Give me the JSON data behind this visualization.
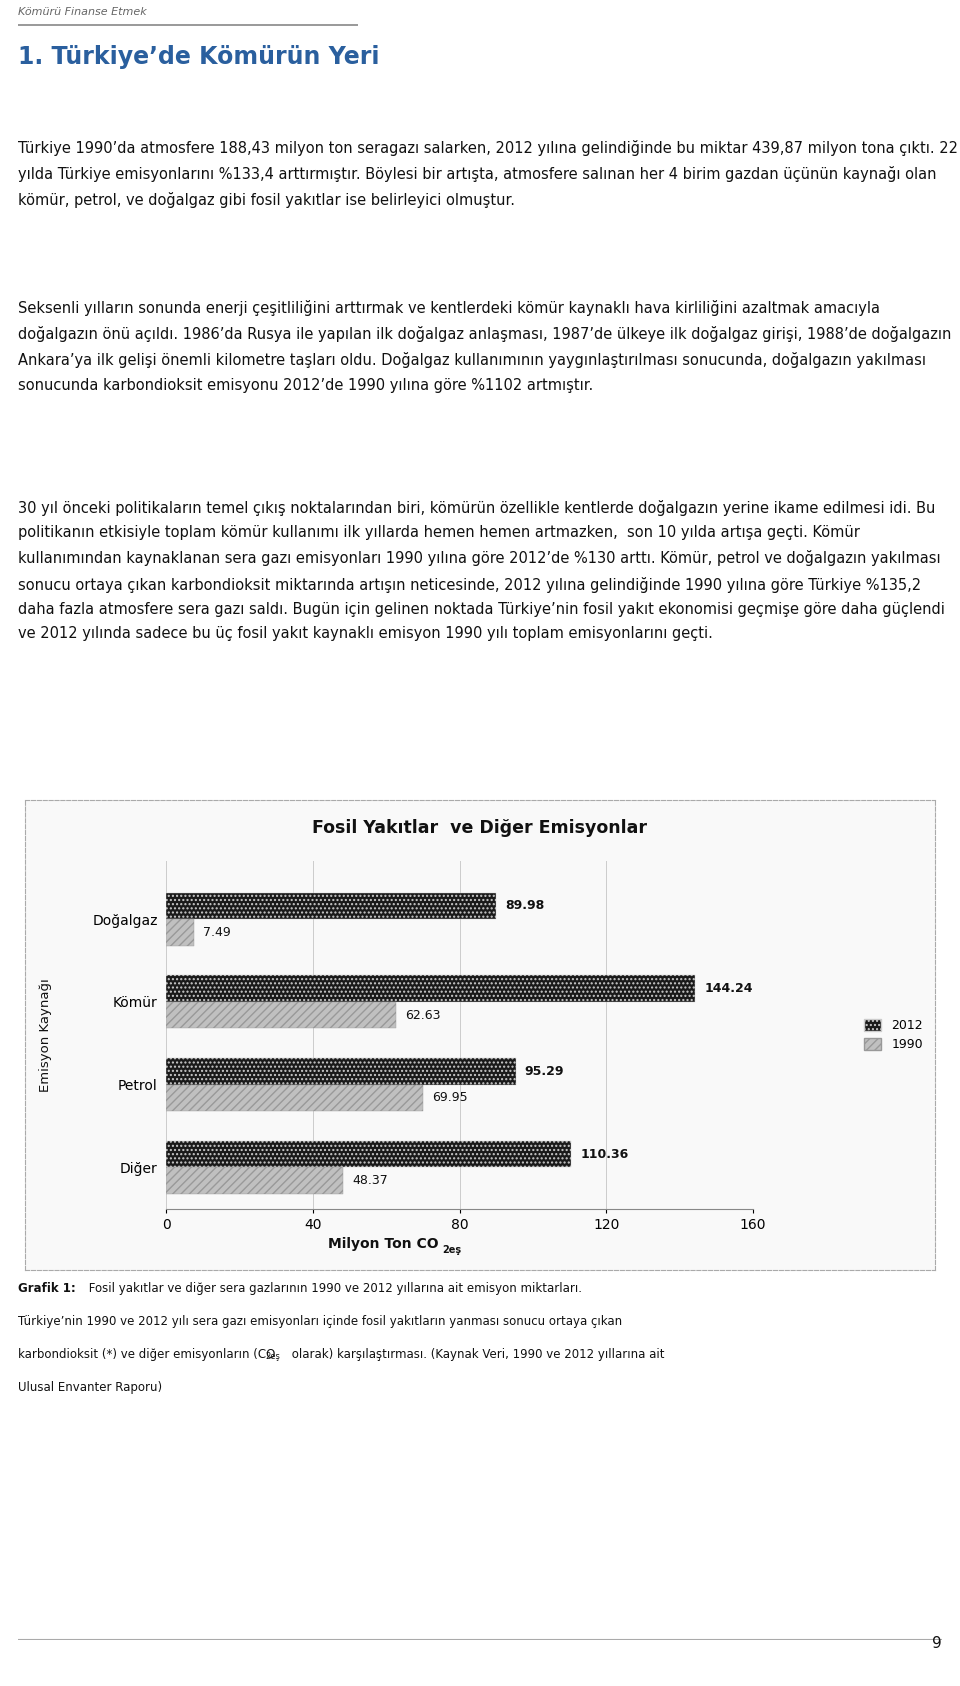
{
  "page_header": "Kömürü Finanse Etmek",
  "section_title": "1. Türkiye’de Kömürün Yeri",
  "para1": "Türkiye 1990’da atmosfere 188,43 milyon ton seragazı salarken, 2012 yılına gelindiğinde bu miktar 439,87 milyon tona çıktı. 22 yılda Türkiye emisyonlarını %133,4 arttırmıştır. Böylesi bir artışta, atmosfere salınan her 4 birim gazdan üçünün kaynağı olan kömür, petrol, ve doğalgaz gibi fosil yakıtlar ise belirleyici olmuştur.",
  "para2": "Seksenli yılların sonunda enerji çeşitliliğini arttırmak ve kentlerdeki kömür kaynaklı hava kirliliğini azaltmak amacıyla doğalgazın önü açıldı. 1986’da Rusya ile yapılan ilk doğalgaz anlaşması, 1987’de ülkeye ilk doğalgaz girişi, 1988’de doğalgazın Ankara’ya ilk gelişi önemli kilometre taşları oldu. Doğalgaz kullanımının yaygınlaştırılması sonucunda, doğalgazın yakılması sonucunda karbondioksit emisyonu 2012’de 1990 yılına göre %1102 artmıştır.",
  "para3": "30 yıl önceki politikaların temel çıkış noktalarından biri, kömürün özellikle kentlerde doğalgazın yerine ikame edilmesi idi. Bu politikanın etkisiyle toplam kömür kullanımı ilk yıllarda hemen hemen artmazken,  son 10 yılda artışa geçti. Kömür kullanımından kaynaklanan sera gazı emisyonları 1990 yılına göre 2012’de %130 arttı. Kömür, petrol ve doğalgazın yakılması sonucu ortaya çıkan karbondioksit miktarında artışın neticesinde, 2012 yılına gelindiğinde 1990 yılına göre Türkiye %135,2 daha fazla atmosfere sera gazı saldı. Bugün için gelinen noktada Türkiye’nin fosil yakıt ekonomisi geçmişe göre daha güçlendi ve 2012 yılında sadece bu üç fosil yakıt kaynaklı emisyon 1990 yılı toplam emisyonlarını geçti.",
  "chart_title": "Fosil Yakıtlar  ve Diğer Emisyonlar",
  "categories": [
    "Doğalgaz",
    "Kömür",
    "Petrol",
    "Diğer"
  ],
  "values_2012": [
    89.98,
    144.24,
    95.29,
    110.36
  ],
  "values_1990": [
    7.49,
    62.63,
    69.95,
    48.37
  ],
  "color_2012": "#1a1a1a",
  "color_1990": "#c0c0c0",
  "ylabel": "Emisyon Kaynağı",
  "xlim": [
    0,
    160
  ],
  "xticks": [
    0,
    40,
    80,
    120,
    160
  ],
  "hatch_2012": "....",
  "hatch_1990": "////",
  "caption_bold": "Grafik 1:",
  "caption_rest1": " Fosil yakıtlar ve diğer sera gazlarının 1990 ve 2012 yıllarına ait emisyon miktarları.",
  "caption2": "Türkiye’nin 1990 ve 2012 yılı sera gazı emisyonları içinde fosil yakıtların yanması sonucu ortaya çıkan",
  "caption3a": "karbondioksit (*) ve diğer emisyonların (CO",
  "caption3sub": "2eş",
  "caption3b": " olarak) karşılaştırması. (Kaynak Veri, 1990 ve 2012 yıllarına ait",
  "caption4": "Ulusal Envanter Raporu)",
  "page_number": "9"
}
